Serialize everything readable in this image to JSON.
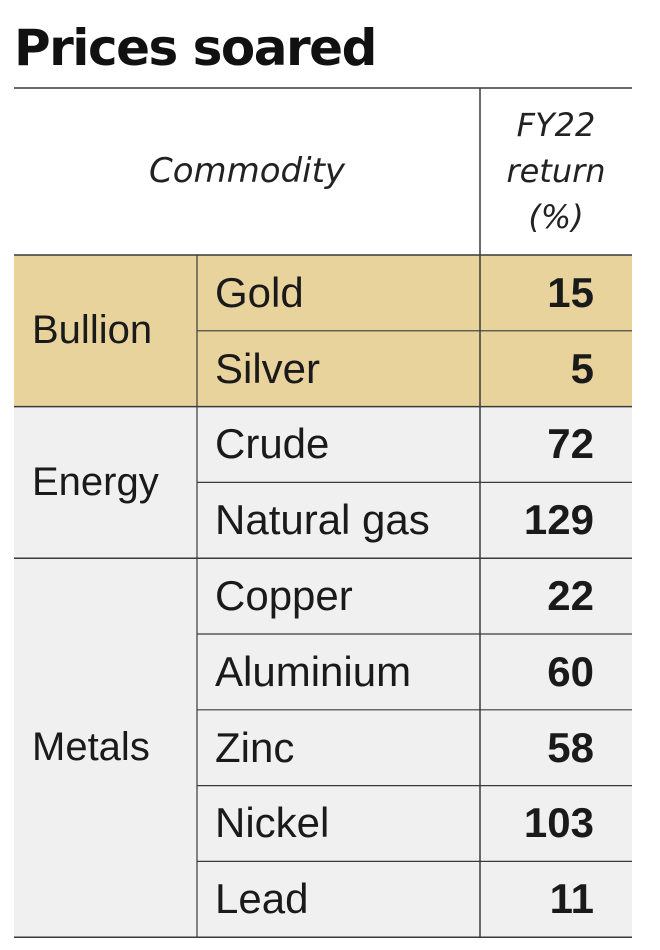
{
  "title": "Prices soared",
  "header": {
    "commodity": "Commodity",
    "return_lines": [
      "FY22",
      "return",
      "(%)"
    ]
  },
  "colors": {
    "bullion": "#e8d39c",
    "energy": "#f0f0f0",
    "metals": "#f0f0f0",
    "line": "#3a3a3a"
  },
  "chart_data": {
    "type": "table",
    "title": "Prices soared",
    "columns": [
      "Commodity",
      "FY22 return (%)"
    ],
    "groups": [
      {
        "name": "Bullion",
        "items": [
          {
            "name": "Gold",
            "value": 15
          },
          {
            "name": "Silver",
            "value": 5
          }
        ]
      },
      {
        "name": "Energy",
        "items": [
          {
            "name": "Crude",
            "value": 72
          },
          {
            "name": "Natural gas",
            "value": 129
          }
        ]
      },
      {
        "name": "Metals",
        "items": [
          {
            "name": "Copper",
            "value": 22
          },
          {
            "name": "Aluminium",
            "value": 60
          },
          {
            "name": "Zinc",
            "value": 58
          },
          {
            "name": "Nickel",
            "value": 103
          },
          {
            "name": "Lead",
            "value": 11
          }
        ]
      }
    ]
  }
}
